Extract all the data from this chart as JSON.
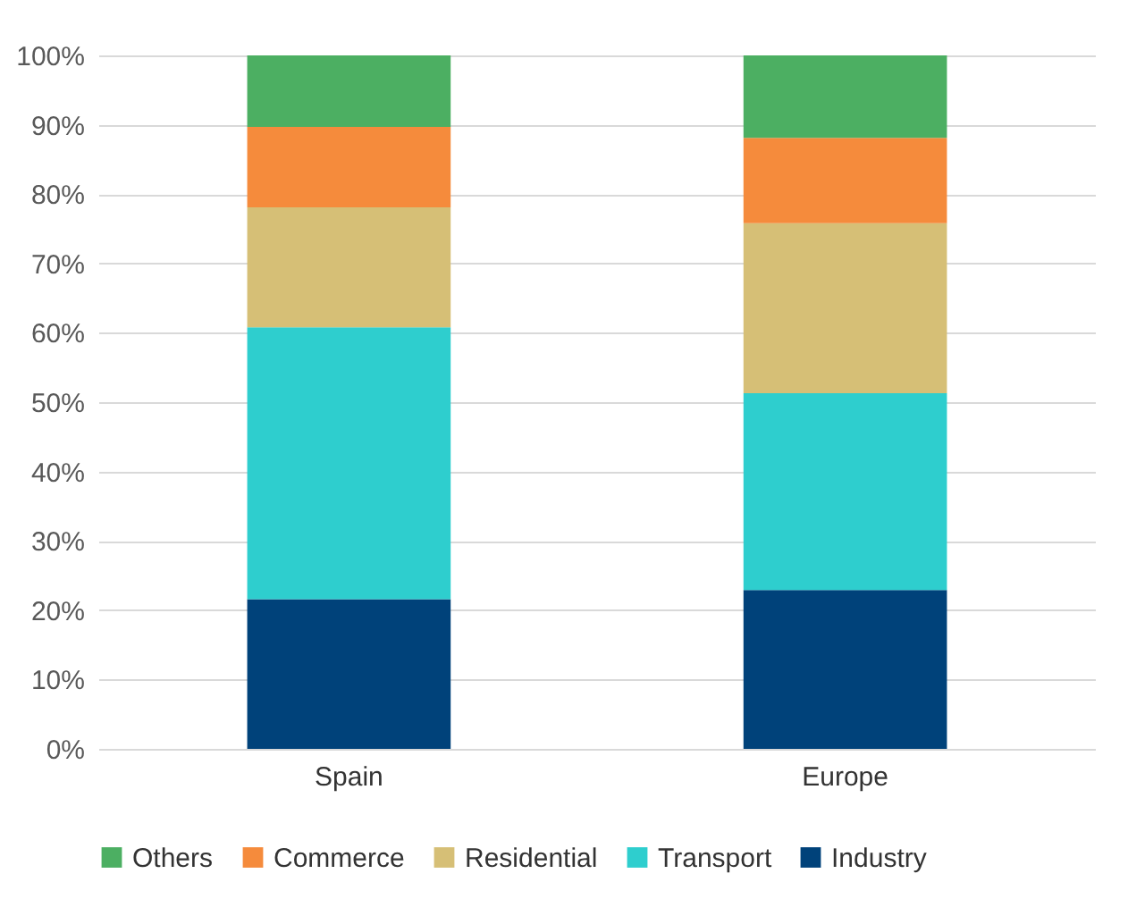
{
  "chart_data": {
    "type": "bar",
    "stacked": true,
    "categories": [
      "Spain",
      "Europe"
    ],
    "series": [
      {
        "name": "Industry",
        "color": "#00427a",
        "values": [
          21.6,
          22.9
        ]
      },
      {
        "name": "Transport",
        "color": "#2ecece",
        "values": [
          39.2,
          28.4
        ]
      },
      {
        "name": "Residential",
        "color": "#d6bf76",
        "values": [
          17.3,
          24.5
        ]
      },
      {
        "name": "Commerce",
        "color": "#f58b3c",
        "values": [
          11.6,
          12.3
        ]
      },
      {
        "name": "Others",
        "color": "#4caf62",
        "values": [
          10.3,
          11.9
        ]
      }
    ],
    "ylim": [
      0,
      100
    ],
    "yticks": [
      {
        "value": 0,
        "label": "0%"
      },
      {
        "value": 10,
        "label": "10%"
      },
      {
        "value": 20,
        "label": "20%"
      },
      {
        "value": 30,
        "label": "30%"
      },
      {
        "value": 40,
        "label": "40%"
      },
      {
        "value": 50,
        "label": "50%"
      },
      {
        "value": 60,
        "label": "60%"
      },
      {
        "value": 70,
        "label": "70%"
      },
      {
        "value": 80,
        "label": "80%"
      },
      {
        "value": 90,
        "label": "90%"
      },
      {
        "value": 100,
        "label": "100%"
      }
    ],
    "grid": "y",
    "legend": "bottom"
  }
}
